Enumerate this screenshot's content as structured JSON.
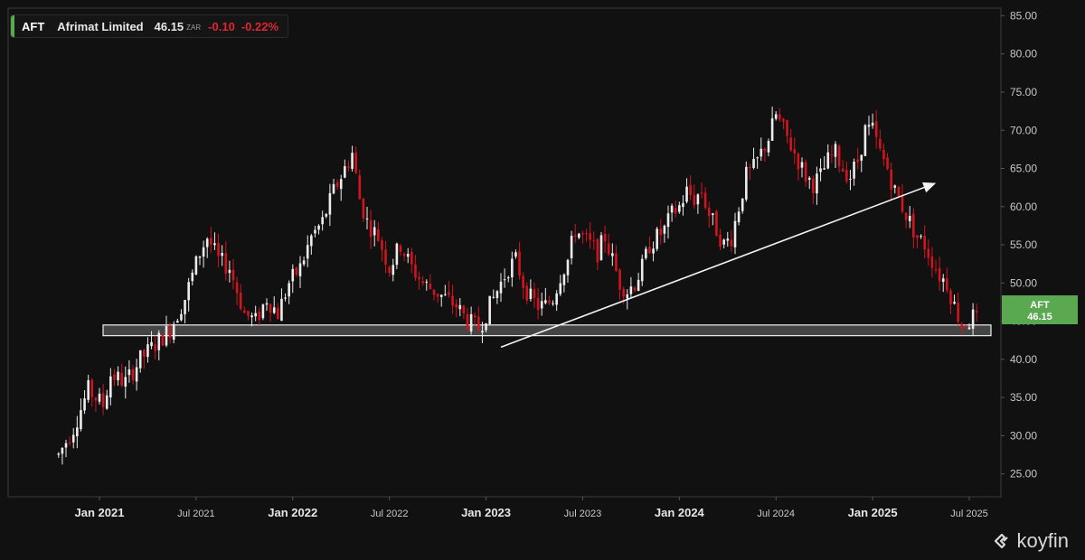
{
  "header": {
    "symbol": "AFT",
    "name": "Afrimat Limited",
    "price": "46.15",
    "currency": "ZAR",
    "change": "-0.10",
    "change_pct": "-0.22%",
    "accent_color": "#59a94e",
    "down_color": "#e0262f"
  },
  "price_tag": {
    "symbol": "AFT",
    "value": "46.15",
    "color": "#5aa84f"
  },
  "logo": {
    "text": "koyfin",
    "icon": "koyfin-logo-icon"
  },
  "chart_data": {
    "type": "candlestick",
    "ylim": [
      22,
      86
    ],
    "y_ticks": [
      "25.00",
      "30.00",
      "35.00",
      "40.00",
      "45.00",
      "50.00",
      "55.00",
      "60.00",
      "65.00",
      "70.00",
      "75.00",
      "80.00",
      "85.00"
    ],
    "x_ticks": [
      {
        "label": "Jan 2021",
        "week": 11,
        "major": true
      },
      {
        "label": "Jul 2021",
        "week": 37,
        "major": false
      },
      {
        "label": "Jan 2022",
        "week": 63,
        "major": true
      },
      {
        "label": "Jul 2022",
        "week": 89,
        "major": false
      },
      {
        "label": "Jan 2023",
        "week": 115,
        "major": true
      },
      {
        "label": "Jul 2023",
        "week": 141,
        "major": false
      },
      {
        "label": "Jan 2024",
        "week": 167,
        "major": true
      },
      {
        "label": "Jul 2024",
        "week": 193,
        "major": false
      },
      {
        "label": "Jan 2025",
        "week": 219,
        "major": true
      },
      {
        "label": "Jul 2025",
        "week": 245,
        "major": false
      }
    ],
    "x_range": [
      -1,
      251
    ],
    "support_zone": {
      "low": 43.1,
      "high": 44.5,
      "from_week": 14,
      "to_week": 267
    },
    "trendline": {
      "from_week": 119,
      "from_value": 41.6,
      "to_week": 257,
      "to_value": 62.6
    },
    "anchors": [
      [
        0,
        27.5
      ],
      [
        4,
        31
      ],
      [
        8,
        36
      ],
      [
        12,
        34
      ],
      [
        14,
        38
      ],
      [
        18,
        37
      ],
      [
        22,
        40
      ],
      [
        26,
        42
      ],
      [
        30,
        44
      ],
      [
        34,
        48
      ],
      [
        36,
        51
      ],
      [
        38,
        54
      ],
      [
        40,
        56
      ],
      [
        43,
        53
      ],
      [
        46,
        52
      ],
      [
        48,
        49
      ],
      [
        50,
        46
      ],
      [
        53,
        45
      ],
      [
        56,
        48
      ],
      [
        59,
        46
      ],
      [
        62,
        50
      ],
      [
        65,
        52
      ],
      [
        68,
        56
      ],
      [
        71,
        58
      ],
      [
        74,
        62
      ],
      [
        77,
        65
      ],
      [
        79,
        67
      ],
      [
        81,
        61
      ],
      [
        83,
        58
      ],
      [
        86,
        56
      ],
      [
        89,
        52
      ],
      [
        92,
        55
      ],
      [
        95,
        52
      ],
      [
        98,
        50
      ],
      [
        101,
        49
      ],
      [
        104,
        48
      ],
      [
        107,
        47
      ],
      [
        110,
        45
      ],
      [
        113,
        44
      ],
      [
        115,
        46
      ],
      [
        117,
        48
      ],
      [
        119,
        50
      ],
      [
        121,
        52
      ],
      [
        123,
        53
      ],
      [
        125,
        50
      ],
      [
        127,
        48
      ],
      [
        129,
        47
      ],
      [
        131,
        47
      ],
      [
        133,
        48
      ],
      [
        135,
        51
      ],
      [
        137,
        53
      ],
      [
        139,
        57
      ],
      [
        141,
        56
      ],
      [
        143,
        55
      ],
      [
        145,
        54
      ],
      [
        147,
        56
      ],
      [
        149,
        53
      ],
      [
        151,
        50
      ],
      [
        153,
        49
      ],
      [
        155,
        50
      ],
      [
        157,
        52
      ],
      [
        159,
        55
      ],
      [
        161,
        56
      ],
      [
        163,
        57
      ],
      [
        165,
        59
      ],
      [
        167,
        60
      ],
      [
        169,
        62
      ],
      [
        171,
        61
      ],
      [
        173,
        62
      ],
      [
        175,
        59
      ],
      [
        177,
        57
      ],
      [
        179,
        55
      ],
      [
        181,
        56
      ],
      [
        183,
        60
      ],
      [
        185,
        64
      ],
      [
        187,
        65
      ],
      [
        189,
        67
      ],
      [
        191,
        69
      ],
      [
        193,
        72
      ],
      [
        195,
        70
      ],
      [
        197,
        68
      ],
      [
        199,
        66
      ],
      [
        201,
        64
      ],
      [
        203,
        63
      ],
      [
        205,
        64
      ],
      [
        207,
        66
      ],
      [
        209,
        67
      ],
      [
        211,
        65
      ],
      [
        213,
        64
      ],
      [
        215,
        66
      ],
      [
        217,
        70
      ],
      [
        219,
        70
      ],
      [
        221,
        67
      ],
      [
        223,
        65
      ],
      [
        225,
        62
      ],
      [
        227,
        60
      ],
      [
        229,
        58
      ],
      [
        231,
        56
      ],
      [
        233,
        55
      ],
      [
        235,
        53
      ],
      [
        237,
        51
      ],
      [
        239,
        50
      ],
      [
        241,
        47
      ],
      [
        243,
        44.5
      ],
      [
        245,
        45
      ],
      [
        247,
        46.2
      ]
    ],
    "last_close": 46.15
  }
}
